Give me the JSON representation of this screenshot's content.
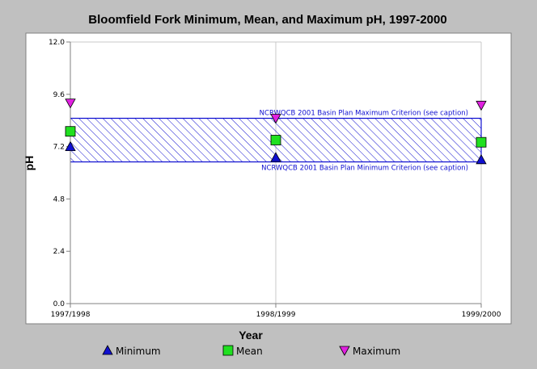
{
  "chart_data": {
    "type": "scatter",
    "title": "Bloomfield Fork Minimum, Mean, and Maximum pH, 1997-2000",
    "xlabel": "Year",
    "ylabel": "pH",
    "categories": [
      "1997/1998",
      "1998/1999",
      "1999/2000"
    ],
    "ylim": [
      0.0,
      12.0
    ],
    "yticks": [
      "0.0",
      "2.4",
      "4.8",
      "7.2",
      "9.6",
      "12.0"
    ],
    "grid": true,
    "legend_position": "bottom",
    "series": [
      {
        "name": "Minimum",
        "marker": "triangle-up",
        "color": "#1010d0",
        "values": [
          7.2,
          6.7,
          6.6
        ]
      },
      {
        "name": "Mean",
        "marker": "square",
        "color": "#20e020",
        "values": [
          7.9,
          7.5,
          7.4
        ]
      },
      {
        "name": "Maximum",
        "marker": "triangle-down",
        "color": "#e020e0",
        "values": [
          9.2,
          8.5,
          9.1
        ]
      }
    ],
    "criteria_band": {
      "upper": 8.5,
      "lower": 6.5,
      "upper_label": "NCRWQCB 2001 Basin Plan Maximum Criterion (see caption)",
      "lower_label": "NCRWQCB 2001 Basin Plan Minimum Criterion (see caption)",
      "color": "#1010d0"
    }
  }
}
